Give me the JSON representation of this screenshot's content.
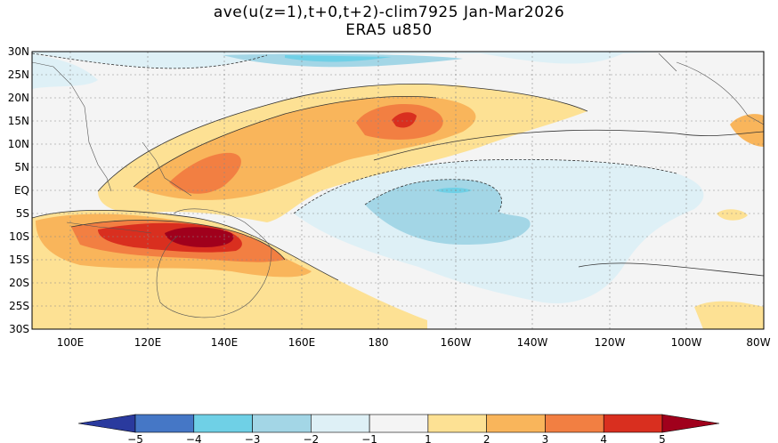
{
  "title_line1": "ave(u(z=1),t+0,t+2)-clim7925 Jan-Mar2026",
  "title_line2": "ERA5 u850",
  "chart_data": {
    "type": "heatmap",
    "variable": "850 hPa zonal wind anomaly (u850)",
    "units_shown": "",
    "lon_range": [
      90,
      280
    ],
    "lat_range": [
      -30,
      30
    ],
    "lat_labels": [
      "30N",
      "25N",
      "20N",
      "15N",
      "10N",
      "5N",
      "EQ",
      "5S",
      "10S",
      "15S",
      "20S",
      "25S",
      "30S"
    ],
    "lon_labels": [
      "100E",
      "120E",
      "140E",
      "160E",
      "180",
      "160W",
      "140W",
      "120W",
      "100W",
      "80W"
    ],
    "colorbar": {
      "levels": [
        "-5",
        "-4",
        "-3",
        "-2",
        "-1",
        "1",
        "2",
        "3",
        "4",
        "5"
      ],
      "colors": [
        "#2a3a9e",
        "#4577c6",
        "#6fd0e6",
        "#a3d6e6",
        "#def0f6",
        "#f4f4f4",
        "#fde194",
        "#f9b55b",
        "#f27f42",
        "#d92f1f",
        "#a0001c"
      ]
    },
    "features": [
      {
        "name": "westerly anomaly band NW Pacific",
        "center": [
          175,
          15
        ],
        "peak": 4
      },
      {
        "name": "westerly anomaly max Arafura / Coral Sea",
        "center": [
          135,
          -10
        ],
        "peak": 5
      },
      {
        "name": "easterly anomaly central-east Pacific",
        "center": [
          200,
          -5
        ],
        "peak": -3
      },
      {
        "name": "easterly anomaly north Pacific",
        "center": [
          195,
          28
        ],
        "peak": -3
      }
    ]
  }
}
